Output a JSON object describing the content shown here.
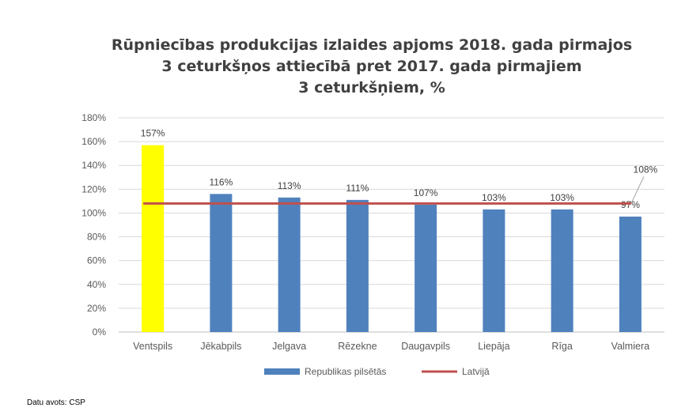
{
  "chart_data": {
    "type": "bar",
    "title_lines": [
      "Rūpniecības produkcijas izlaides apjoms 2018. gada pirmajos",
      "3 ceturkšņos attiecībā pret 2017. gada pirmajiem",
      "3 ceturkšņiem, %"
    ],
    "categories": [
      "Ventspils",
      "Jēkabpils",
      "Jelgava",
      "Rēzekne",
      "Daugavpils",
      "Liepāja",
      "Rīga",
      "Valmiera"
    ],
    "series": [
      {
        "name": "Republikas pilsētās",
        "type": "bar",
        "values": [
          157,
          116,
          113,
          111,
          107,
          103,
          103,
          97
        ],
        "labels": [
          "157%",
          "116%",
          "113%",
          "111%",
          "107%",
          "103%",
          "103%",
          "97%"
        ],
        "color": "#4F81BD",
        "highlight": {
          "index": 0,
          "color": "#FFFF00"
        }
      },
      {
        "name": "Latvijā",
        "type": "line",
        "value": 108,
        "label": "108%",
        "color": "#C0504D"
      }
    ],
    "y_ticks": [
      "0%",
      "20%",
      "40%",
      "60%",
      "80%",
      "100%",
      "120%",
      "140%",
      "160%",
      "180%"
    ],
    "ylim": [
      0,
      180
    ],
    "ystep": 20,
    "grid": true,
    "legend_position": "bottom"
  },
  "source_note": "Datu avots: CSP"
}
